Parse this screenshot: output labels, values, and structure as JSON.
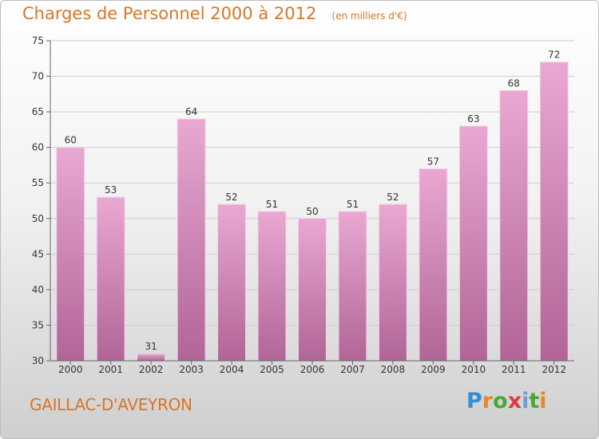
{
  "header": {
    "title": "Charges de Personnel 2000 à 2012",
    "subtitle": "(en milliers d'€)"
  },
  "footer": {
    "commune": "GAILLAC-D'AVEYRON",
    "logo_text": "Proxiti",
    "logo_colors": [
      "#2f8fd6",
      "#e4882a",
      "#4aa63a",
      "#e23b3b",
      "#6a9fd8",
      "#4aa63a",
      "#e4882a"
    ]
  },
  "colors": {
    "bar_top": "#e9a8d2",
    "bar_bottom": "#b06596",
    "text": "#d97525",
    "axis_text": "#333333",
    "grid": "#cccccc"
  },
  "chart_data": {
    "type": "bar",
    "title": "Charges de Personnel 2000 à 2012",
    "subtitle": "(en milliers d'€)",
    "categories": [
      "2000",
      "2001",
      "2002",
      "2003",
      "2004",
      "2005",
      "2006",
      "2007",
      "2008",
      "2009",
      "2010",
      "2011",
      "2012"
    ],
    "values": [
      60,
      53,
      31,
      64,
      52,
      51,
      50,
      51,
      52,
      57,
      63,
      68,
      72
    ],
    "ylim": [
      30,
      75
    ],
    "yticks": [
      30,
      35,
      40,
      45,
      50,
      55,
      60,
      65,
      70,
      75
    ],
    "grid": true,
    "data_labels": true
  }
}
